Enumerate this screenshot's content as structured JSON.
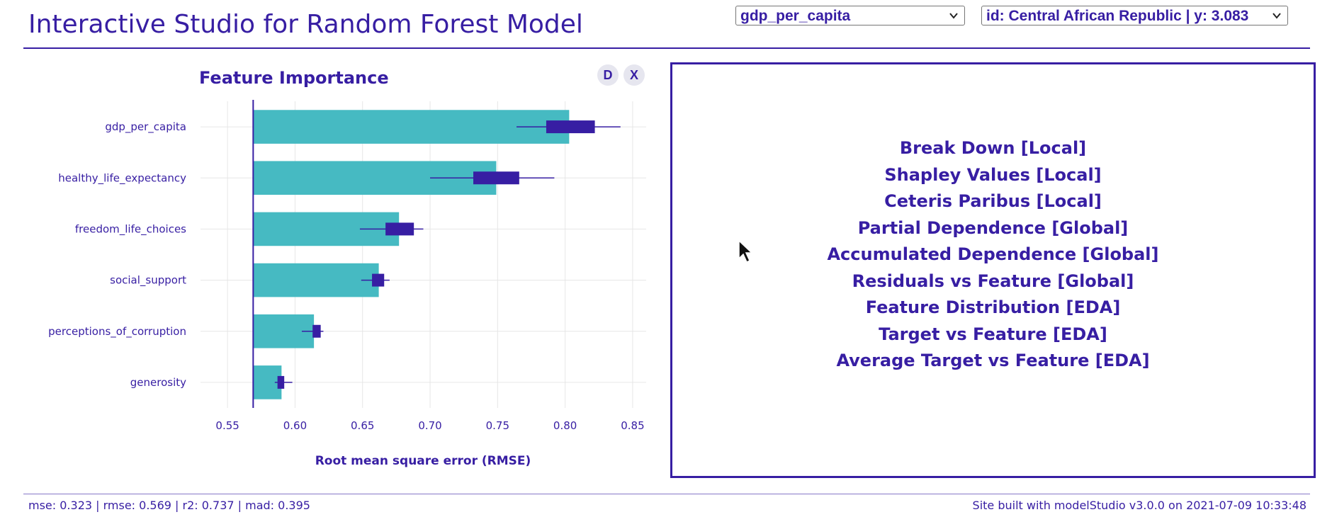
{
  "app": {
    "title": "Interactive Studio for Random Forest Model"
  },
  "controls": {
    "variable_select": "gdp_per_capita",
    "observation_select": "id: Central African Republic | y: 3.083"
  },
  "left_panel": {
    "plot_title": "Feature Importance",
    "buttons": {
      "d": "D",
      "x": "X"
    }
  },
  "chart_data": {
    "type": "bar",
    "orientation": "horizontal",
    "title": "Feature Importance",
    "xlabel": "Root mean square error (RMSE)",
    "xlim": [
      0.53,
      0.86
    ],
    "baseline": 0.569,
    "xticks": [
      "0.55",
      "0.60",
      "0.65",
      "0.70",
      "0.75",
      "0.80",
      "0.85"
    ],
    "categories": [
      "gdp_per_capita",
      "healthy_life_expectancy",
      "freedom_life_choices",
      "social_support",
      "perceptions_of_corruption",
      "generosity"
    ],
    "values": [
      0.803,
      0.749,
      0.677,
      0.662,
      0.614,
      0.59
    ],
    "boxplots": [
      {
        "min": 0.764,
        "q1": 0.786,
        "q3": 0.822,
        "max": 0.841
      },
      {
        "min": 0.7,
        "q1": 0.732,
        "q3": 0.766,
        "max": 0.792
      },
      {
        "min": 0.648,
        "q1": 0.667,
        "q3": 0.688,
        "max": 0.695
      },
      {
        "min": 0.649,
        "q1": 0.657,
        "q3": 0.666,
        "max": 0.67
      },
      {
        "min": 0.605,
        "q1": 0.613,
        "q3": 0.619,
        "max": 0.621
      },
      {
        "min": 0.585,
        "q1": 0.587,
        "q3": 0.592,
        "max": 0.598
      }
    ],
    "colors": {
      "bar": "#46bac2",
      "box": "#371ea3",
      "grid": "#e6e6e6",
      "text": "#371ea3"
    }
  },
  "right_panel": {
    "menu": [
      "Break Down [Local]",
      "Shapley Values [Local]",
      "Ceteris Paribus [Local]",
      "Partial Dependence [Global]",
      "Accumulated Dependence [Global]",
      "Residuals vs Feature [Global]",
      "Feature Distribution [EDA]",
      "Target vs Feature [EDA]",
      "Average Target vs Feature [EDA]"
    ]
  },
  "footer": {
    "metrics": "mse: 0.323 | rmse: 0.569 | r2: 0.737 | mad: 0.395",
    "credit": "Site built with modelStudio v3.0.0 on 2021-07-09 10:33:48"
  },
  "theme": {
    "accent": "#371ea3",
    "bar": "#46bac2"
  }
}
